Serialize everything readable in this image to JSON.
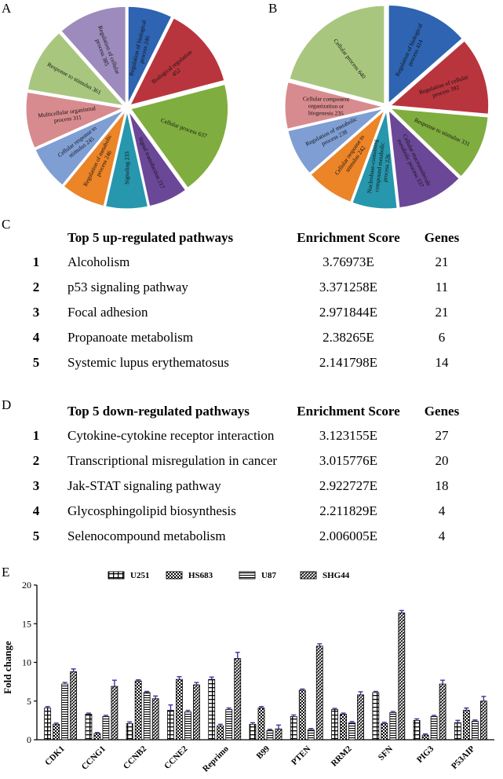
{
  "panels": {
    "a": "A",
    "b": "B",
    "c": "C",
    "d": "D",
    "e": "E"
  },
  "pie_a": {
    "slices": [
      {
        "label": "Regulation of biological process 246",
        "value": 246,
        "color": "#2e64b1"
      },
      {
        "label": "Biological regulation 452",
        "value": 452,
        "color": "#b9353d"
      },
      {
        "label": "Cellular process 637",
        "value": 637,
        "color": "#7fad3f"
      },
      {
        "label": "Signal transduction 217",
        "value": 217,
        "color": "#6b4797"
      },
      {
        "label": "Signaling 233",
        "value": 233,
        "color": "#2697ad"
      },
      {
        "label": "Regulation of metabolic process 246",
        "value": 246,
        "color": "#ec8428"
      },
      {
        "label": "Cellular response to stimulus 245",
        "value": 245,
        "color": "#7f9ed3"
      },
      {
        "label": "Multicellular organismal process 311",
        "value": 311,
        "color": "#d88b8e"
      },
      {
        "label": "Response to stimulus 361",
        "value": 361,
        "color": "#a9c67f"
      },
      {
        "label": "Regulation of cellular process 385",
        "value": 385,
        "color": "#9d8bbd"
      }
    ]
  },
  "pie_b": {
    "slices": [
      {
        "label": "Regulation of biological process 414",
        "value": 414,
        "color": "#2e64b1"
      },
      {
        "label": "Regulation of cellular process 392",
        "value": 392,
        "color": "#b9353d"
      },
      {
        "label": "Response to stimulus 331",
        "value": 331,
        "color": "#7fad3f"
      },
      {
        "label": "Cellular macromolecule metabolic process 337",
        "value": 337,
        "color": "#6b4797"
      },
      {
        "label": "Nucleobase-containing compound metabolic process 226",
        "value": 226,
        "color": "#2697ad"
      },
      {
        "label": "Cellular response to stimulus 242",
        "value": 242,
        "color": "#ec8428"
      },
      {
        "label": "Regulation of metabolic process 238",
        "value": 238,
        "color": "#7f9ed3"
      },
      {
        "label": "Cellular component organization or biogenesis 235",
        "value": 235,
        "color": "#d88b8e"
      },
      {
        "label": "Cellular process 640",
        "value": 640,
        "color": "#a9c67f"
      }
    ]
  },
  "table_up": {
    "header": {
      "name": "Top 5 up-regulated pathways",
      "score": "Enrichment Score",
      "genes": "Genes"
    },
    "rows": [
      {
        "rank": "1",
        "name": "Alcoholism",
        "score": "3.76973E",
        "genes": "21"
      },
      {
        "rank": "2",
        "name": "p53 signaling pathway",
        "score": "3.371258E",
        "genes": "11"
      },
      {
        "rank": "3",
        "name": "Focal adhesion",
        "score": "2.971844E",
        "genes": "21"
      },
      {
        "rank": "4",
        "name": "Propanoate metabolism",
        "score": "2.38265E",
        "genes": "6"
      },
      {
        "rank": "5",
        "name": "Systemic lupus erythematosus",
        "score": "2.141798E",
        "genes": "14"
      }
    ]
  },
  "table_down": {
    "header": {
      "name": "Top 5 down-regulated pathways",
      "score": "Enrichment Score",
      "genes": "Genes"
    },
    "rows": [
      {
        "rank": "1",
        "name": "Cytokine-cytokine receptor interaction",
        "score": "3.123155E",
        "genes": "27"
      },
      {
        "rank": "2",
        "name": "Transcriptional misregulation in cancer",
        "score": "3.015776E",
        "genes": "20"
      },
      {
        "rank": "3",
        "name": "Jak-STAT signaling pathway",
        "score": "2.922727E",
        "genes": "18"
      },
      {
        "rank": "4",
        "name": "Glycosphingolipid biosynthesis",
        "score": "2.211829E",
        "genes": "4"
      },
      {
        "rank": "5",
        "name": "Selenocompound metabolism",
        "score": "2.006005E",
        "genes": "4"
      }
    ]
  },
  "chart_data": [
    {
      "type": "pie",
      "categories": [
        "Regulation of biological process",
        "Biological regulation",
        "Cellular process",
        "Signal transduction",
        "Signaling",
        "Regulation of metabolic process",
        "Cellular response to stimulus",
        "Multicellular organismal process",
        "Response to stimulus",
        "Regulation of cellular process"
      ],
      "values": [
        246,
        452,
        637,
        217,
        233,
        246,
        245,
        311,
        361,
        385
      ]
    },
    {
      "type": "pie",
      "categories": [
        "Regulation of biological process",
        "Regulation of cellular process",
        "Response to stimulus",
        "Cellular macromolecule metabolic process",
        "Nucleobase-containing compound metabolic process",
        "Cellular response to stimulus",
        "Regulation of metabolic process",
        "Cellular component organization or biogenesis",
        "Cellular process"
      ],
      "values": [
        414,
        392,
        331,
        337,
        226,
        242,
        238,
        235,
        640
      ]
    },
    {
      "type": "bar",
      "ylabel": "Fold change",
      "ylim": [
        0,
        20
      ],
      "yticks": [
        "0",
        "5",
        "10",
        "15",
        "20"
      ],
      "legend_position": "top",
      "categories": [
        "CDK1",
        "CCNG1",
        "CCNB2",
        "CCNE2",
        "Reprimo",
        "B99",
        "PTEN",
        "RRM2",
        "SFN",
        "PIG3",
        "P53AIP"
      ],
      "series": [
        {
          "name": "U251",
          "values": [
            4.1,
            3.3,
            2.1,
            3.8,
            7.8,
            2.0,
            3.0,
            3.9,
            6.1,
            2.5,
            2.2
          ],
          "errors": [
            0.2,
            0.15,
            0.2,
            0.7,
            0.3,
            0.2,
            0.2,
            0.15,
            0.15,
            0.2,
            0.3
          ]
        },
        {
          "name": "HS683",
          "values": [
            2.0,
            0.8,
            7.6,
            7.8,
            1.8,
            4.1,
            6.4,
            3.3,
            2.1,
            0.6,
            3.8
          ],
          "errors": [
            0.15,
            0.15,
            0.15,
            0.35,
            0.2,
            0.2,
            0.15,
            0.15,
            0.15,
            0.15,
            0.3
          ]
        },
        {
          "name": "U87",
          "values": [
            7.2,
            3.0,
            6.1,
            3.6,
            3.9,
            1.2,
            1.3,
            2.2,
            3.5,
            3.0,
            2.4
          ],
          "errors": [
            0.2,
            0.15,
            0.15,
            0.2,
            0.2,
            0.15,
            0.15,
            0.15,
            0.15,
            0.15,
            0.15
          ]
        },
        {
          "name": "SHG44",
          "values": [
            8.8,
            6.9,
            5.3,
            7.1,
            10.5,
            1.4,
            12.1,
            5.8,
            16.4,
            7.2,
            5.0
          ],
          "errors": [
            0.35,
            0.8,
            0.35,
            0.3,
            0.8,
            0.5,
            0.3,
            0.4,
            0.3,
            0.5,
            0.6
          ]
        }
      ]
    }
  ]
}
